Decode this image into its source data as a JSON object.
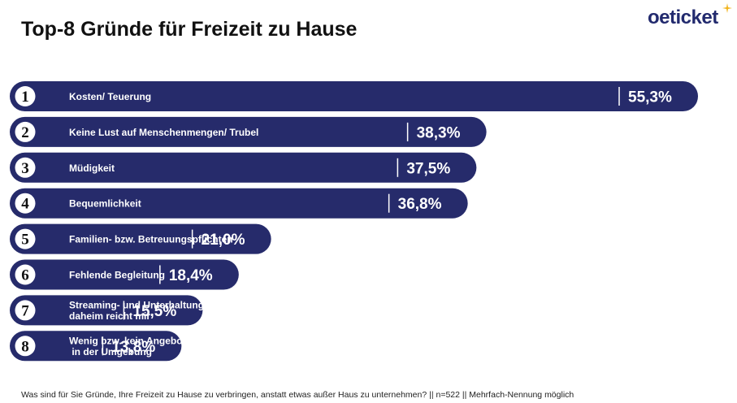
{
  "header": {
    "title": "Top-8 Gründe für Freizeit zu Hause",
    "logo_text": "oeticket"
  },
  "footnote": "Was sind für Sie Gründe, Ihre Freizeit zu Hause zu verbringen, anstatt etwas außer Haus zu unternehmen? || n=522 || Mehrfach-Nennung möglich",
  "colors": {
    "bar": "#262b6b",
    "badge_bg": "#ffffff",
    "label_text": "#ffffff",
    "title_text": "#111111",
    "logo_text": "#222a6e",
    "logo_star": "#f2b41b"
  },
  "chart_data": {
    "type": "bar",
    "orientation": "horizontal",
    "title": "Top-8 Gründe für Freizeit zu Hause",
    "unit": "%",
    "categories": [
      "Kosten/ Teuerung",
      "Keine Lust auf Menschenmengen/ Trubel",
      "Müdigkeit",
      "Bequemlichkeit",
      "Familien- bzw. Betreuungspflichten",
      "Fehlende Begleitung",
      "Streaming- und Unterhaltungsangebot\ndaheim reicht mir",
      "Wenig bzw. kein Angebot\n in der Umgebung"
    ],
    "ranks": [
      "1",
      "2",
      "3",
      "4",
      "5",
      "6",
      "7",
      "8"
    ],
    "values": [
      55.3,
      38.3,
      37.5,
      36.8,
      21.0,
      18.4,
      15.5,
      13.8
    ],
    "value_labels": [
      "55,3%",
      "38,3%",
      "37,5%",
      "36,8%",
      "21,0%",
      "18,4%",
      "15,5%",
      "13,8%"
    ],
    "xlim": [
      0,
      55.3
    ],
    "grid": false,
    "legend": "none"
  }
}
